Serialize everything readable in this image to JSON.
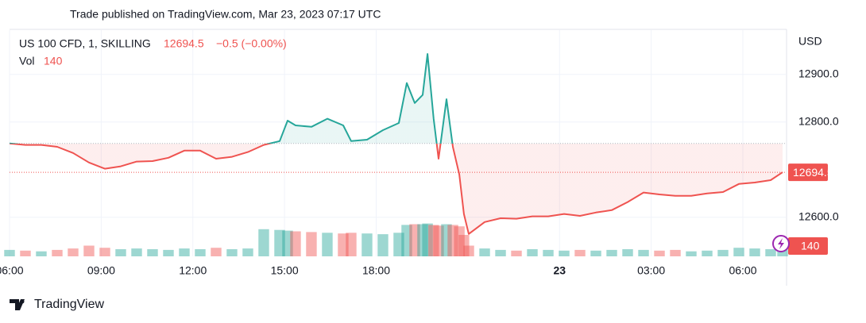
{
  "header": {
    "published": "Trade published on TradingView.com, Mar 23, 2023 07:17 UTC"
  },
  "footer": {
    "brand": "TradingView"
  },
  "chart_data": {
    "type": "line",
    "title": "US 100 CFD, 1, SKILLING",
    "change_label": "−0.5 (−0.00%)",
    "volume_title": "Vol",
    "currency": "USD",
    "x": [
      6.0,
      6.52,
      7.04,
      7.56,
      8.08,
      8.6,
      9.12,
      9.64,
      10.16,
      10.68,
      11.2,
      11.72,
      12.24,
      12.76,
      13.28,
      13.8,
      14.32,
      14.84,
      15.1,
      15.36,
      15.88,
      16.4,
      16.92,
      17.18,
      17.7,
      18.22,
      18.74,
      19.0,
      19.26,
      19.52,
      19.68,
      19.88,
      20.04,
      20.3,
      20.51,
      20.72,
      20.87,
      21.03,
      21.55,
      22.07,
      22.59,
      23.11,
      23.63,
      24.15,
      24.67,
      25.19,
      25.71,
      26.23,
      26.75,
      27.27,
      27.79,
      28.31,
      28.83,
      29.35,
      29.87,
      30.39,
      30.91,
      31.3
    ],
    "values": [
      12755,
      12752,
      12752,
      12748,
      12735,
      12715,
      12702,
      12707,
      12717,
      12718,
      12725,
      12740,
      12740,
      12723,
      12727,
      12737,
      12752,
      12760,
      12803,
      12793,
      12790,
      12807,
      12793,
      12760,
      12763,
      12783,
      12798,
      12882,
      12840,
      12857,
      12943,
      12807,
      12723,
      12848,
      12748,
      12690,
      12607,
      12565,
      12590,
      12598,
      12597,
      12602,
      12602,
      12607,
      12603,
      12610,
      12615,
      12632,
      12652,
      12648,
      12645,
      12645,
      12650,
      12653,
      12670,
      12673,
      12678,
      12694.5
    ],
    "volume": [
      90,
      80,
      70,
      90,
      110,
      150,
      120,
      100,
      110,
      100,
      90,
      110,
      100,
      120,
      100,
      110,
      380,
      370,
      360,
      350,
      340,
      330,
      320,
      330,
      320,
      310,
      330,
      440,
      450,
      450,
      460,
      440,
      430,
      450,
      440,
      420,
      300,
      150,
      110,
      90,
      80,
      100,
      90,
      80,
      90,
      80,
      90,
      100,
      90,
      80,
      90,
      70,
      80,
      90,
      120,
      110,
      100,
      140
    ],
    "volume_lim": [
      0,
      1000
    ],
    "baseline": 12755,
    "colors": {
      "up": "#26a69a",
      "down": "#ef5350"
    },
    "xlim": [
      6,
      31.3
    ],
    "ylim": [
      12518,
      12993
    ],
    "xticks": [
      {
        "value": 6,
        "label": "06:00"
      },
      {
        "value": 9,
        "label": "09:00"
      },
      {
        "value": 12,
        "label": "12:00"
      },
      {
        "value": 15,
        "label": "15:00"
      },
      {
        "value": 18,
        "label": "18:00"
      },
      {
        "value": 24,
        "label": "23"
      },
      {
        "value": 27,
        "label": "03:00"
      },
      {
        "value": 30,
        "label": "06:00"
      }
    ],
    "yticks": [
      {
        "value": 12600,
        "label": "12600.0"
      },
      {
        "value": 12800,
        "label": "12800.0"
      },
      {
        "value": 12900,
        "label": "12900.0"
      }
    ],
    "grid": true
  }
}
